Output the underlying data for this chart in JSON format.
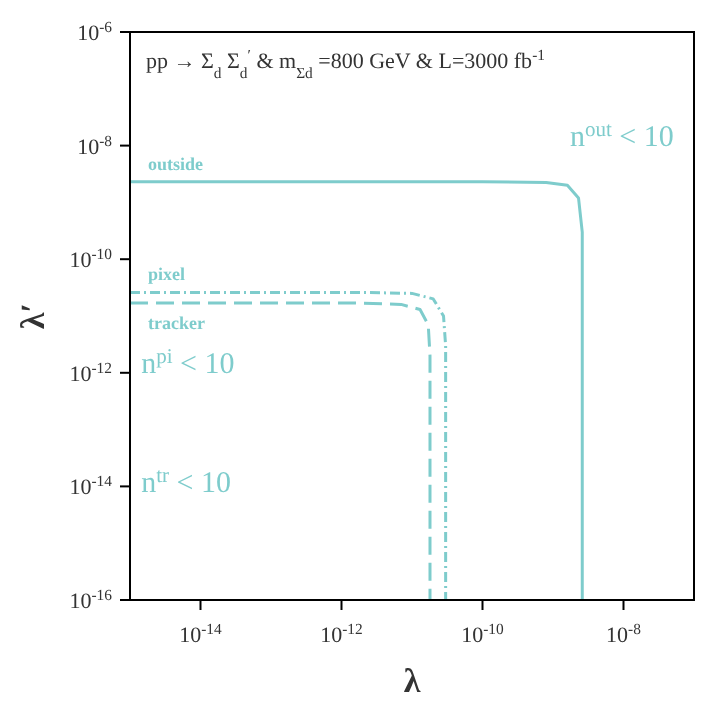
{
  "chart_data": {
    "type": "line",
    "title": "pp → Σ$_{d}$ Σ$_{d}$$^{′}$ & m$_{Σd}$ =800 GeV & L=3000 fb$^{-1}$",
    "xlabel": "λ",
    "ylabel": "λ′",
    "log": "xy",
    "grid": false,
    "legend": false,
    "marker": "none",
    "xlim": [
      1e-15,
      1e-07
    ],
    "ylim": [
      1e-16,
      1e-06
    ],
    "xticks": [
      {
        "value": 1e-14,
        "label": "10$^{-14}$"
      },
      {
        "value": 1e-12,
        "label": "10$^{-12}$"
      },
      {
        "value": 1e-10,
        "label": "10$^{-10}$"
      },
      {
        "value": 1e-08,
        "label": "10$^{-8}$"
      }
    ],
    "yticks": [
      {
        "value": 1e-16,
        "label": "10$^{-16}$"
      },
      {
        "value": 1e-14,
        "label": "10$^{-14}$"
      },
      {
        "value": 1e-12,
        "label": "10$^{-12}$"
      },
      {
        "value": 1e-10,
        "label": "10$^{-10}$"
      },
      {
        "value": 1e-08,
        "label": "10$^{-8}$"
      },
      {
        "value": 1e-06,
        "label": "10$^{-6}$"
      }
    ],
    "annotations": [
      "n$^{out}$ < 10",
      "n$^{pi}$ < 10",
      "n$^{tr}$ < 10"
    ],
    "series": [
      {
        "name": "outside",
        "color": "#7ecccc",
        "line_style": "solid",
        "x": [
          1e-15,
          1e-10,
          8e-10,
          1.6e-09,
          2.3e-09,
          2.6e-09,
          2.6e-09
        ],
        "values": [
          2.3e-09,
          2.3e-09,
          2.25e-09,
          2e-09,
          1.2e-09,
          3e-10,
          1e-16
        ]
      },
      {
        "name": "pixel",
        "color": "#7ecccc",
        "line_style": "dotted",
        "x": [
          1e-15,
          2e-12,
          1e-11,
          2e-11,
          2.8e-11,
          3e-11,
          3e-11
        ],
        "values": [
          2.6e-11,
          2.6e-11,
          2.5e-11,
          2e-11,
          1e-11,
          3e-12,
          1e-16
        ]
      },
      {
        "name": "tracker",
        "color": "#7ecccc",
        "line_style": "dashed",
        "x": [
          1e-15,
          1.5e-12,
          7e-12,
          1.3e-11,
          1.7e-11,
          1.8e-11,
          1.8e-11
        ],
        "values": [
          1.7e-11,
          1.7e-11,
          1.6e-11,
          1.3e-11,
          7e-12,
          2e-12,
          1e-16
        ]
      }
    ]
  }
}
